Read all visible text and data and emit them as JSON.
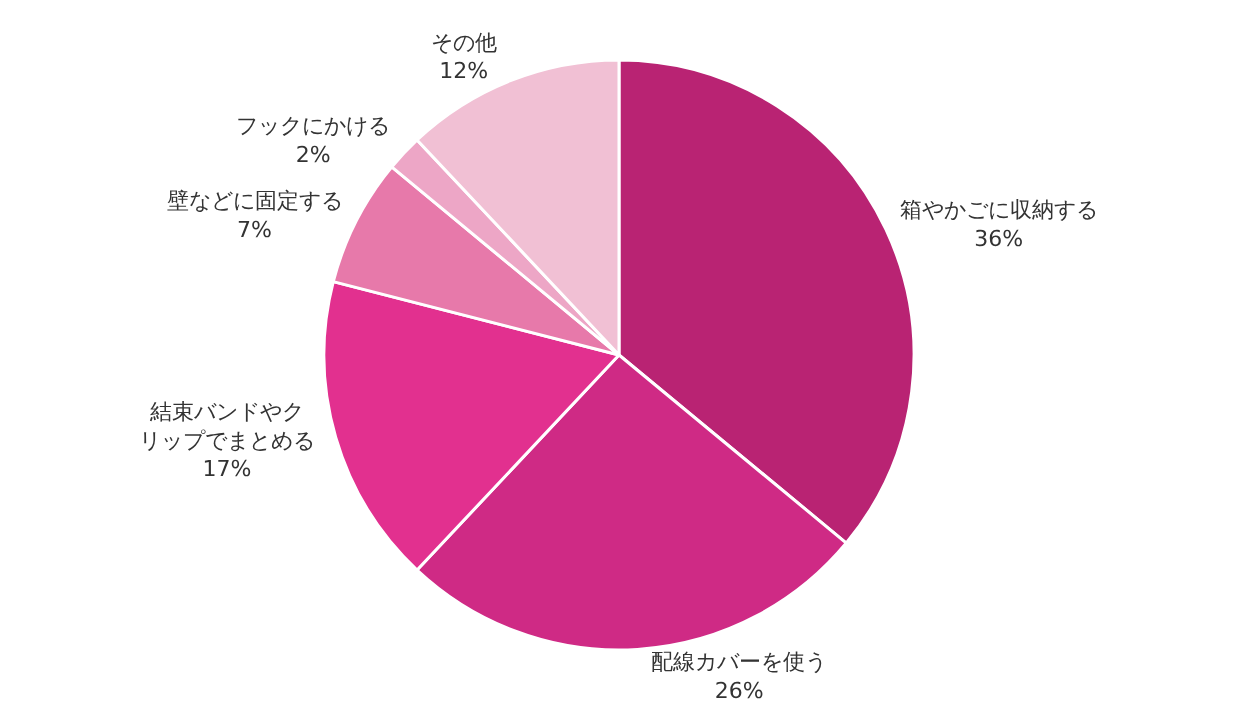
{
  "chart_data": {
    "type": "pie",
    "categories": [
      "箱やかごに収納する",
      "配線カバーを使う",
      "結束バンドやクリップでまとめる",
      "壁などに固定する",
      "フックにかける",
      "その他"
    ],
    "values": [
      36,
      26,
      17,
      7,
      2,
      12
    ],
    "value_labels": [
      "36%",
      "26%",
      "17%",
      "7%",
      "2%",
      "12%"
    ],
    "colors": [
      "#b92373",
      "#cf2a85",
      "#e2308f",
      "#e779aa",
      "#eda6c6",
      "#f1c0d4"
    ]
  }
}
